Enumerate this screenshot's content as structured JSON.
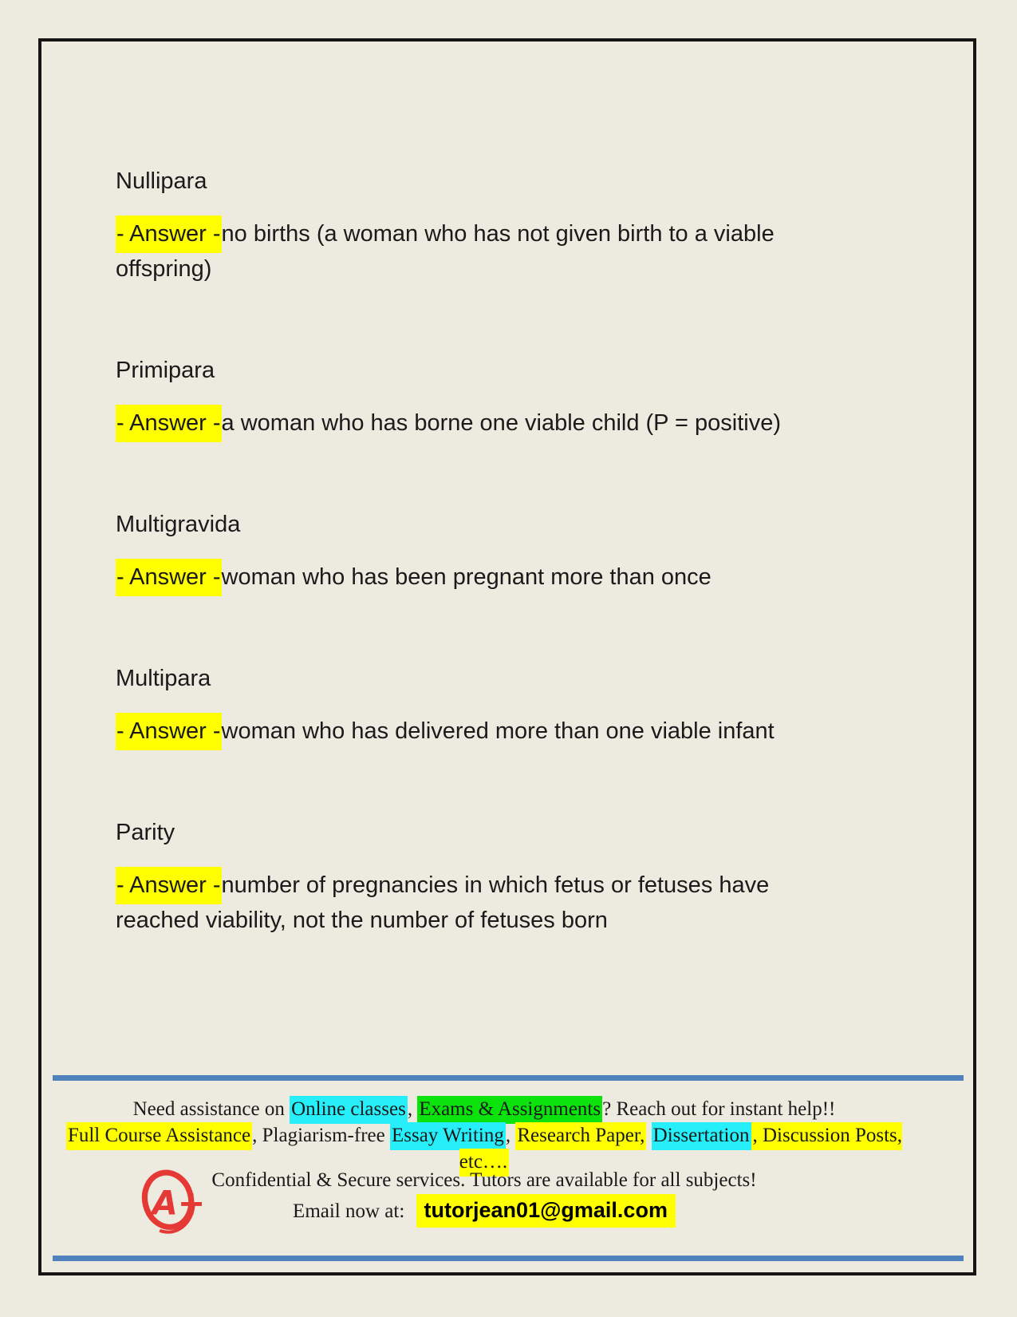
{
  "colors": {
    "page_background": "#EDEAE0",
    "frame_border": "#151515",
    "text_ink": "#1A1A1A",
    "highlight_yellow": "#FFFF00",
    "highlight_cyan": "#26EFFA",
    "highlight_green": "#0CE20C",
    "divider_blue": "#4F81BD",
    "logo_red": "#E43935"
  },
  "flashcards": [
    {
      "term": "Nullipara",
      "answer_label": "- Answer -",
      "answer": "no births (a woman who has not given birth to a viable offspring)"
    },
    {
      "term": "Primipara",
      "answer_label": "- Answer -",
      "answer": "a woman who has borne one viable child (P = positive)"
    },
    {
      "term": "Multigravida",
      "answer_label": "- Answer -",
      "answer": "woman who has been pregnant more than once"
    },
    {
      "term": "Multipara",
      "answer_label": "- Answer -",
      "answer": "woman who has delivered more than one viable infant"
    },
    {
      "term": "Parity",
      "answer_label": "- Answer -",
      "answer": "number of pregnancies in which fetus or fetuses have reached viability, not the number of fetuses born"
    }
  ],
  "footer": {
    "line1": [
      {
        "text": "Need assistance on ",
        "highlight": null
      },
      {
        "text": "Online classes",
        "highlight": "cyan"
      },
      {
        "text": ", ",
        "highlight": null
      },
      {
        "text": "Exams & Assignments",
        "highlight": "green"
      },
      {
        "text": "? Reach out for instant help!!",
        "highlight": null
      }
    ],
    "line2": [
      {
        "text": "Full Course Assistance",
        "highlight": "yellow"
      },
      {
        "text": ", Plagiarism-free ",
        "highlight": null
      },
      {
        "text": "Essay Writing",
        "highlight": "cyan"
      },
      {
        "text": ", ",
        "highlight": null
      },
      {
        "text": "Research Paper,",
        "highlight": "yellow"
      },
      {
        "text": " ",
        "highlight": null
      },
      {
        "text": "Dissertation",
        "highlight": "cyan"
      },
      {
        "text": ", Discussion Posts, etc….",
        "highlight": "yellow"
      }
    ],
    "confidential_line": "Confidential & Secure services. Tutors are available for all subjects!",
    "email_label": "Email now at:",
    "email": "tutorjean01@gmail.com",
    "logo_text": "A+"
  }
}
